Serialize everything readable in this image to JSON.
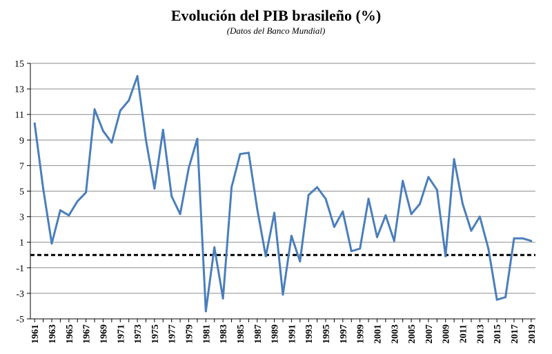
{
  "chart_data": {
    "type": "line",
    "title": "Evolución del PIB brasileño (%)",
    "subtitle": "(Datos del Banco Mundial)",
    "xlabel": "",
    "ylabel": "",
    "ylim": [
      -5,
      15
    ],
    "yticks": [
      15,
      13,
      11,
      9,
      7,
      5,
      3,
      1,
      -1,
      -3,
      -5
    ],
    "xlim": [
      1961,
      2019
    ],
    "xticks": [
      1961,
      1963,
      1965,
      1967,
      1969,
      1971,
      1973,
      1975,
      1977,
      1979,
      1981,
      1983,
      1985,
      1987,
      1989,
      1991,
      1993,
      1995,
      1997,
      1999,
      2001,
      2003,
      2005,
      2007,
      2009,
      2011,
      2013,
      2015,
      2017,
      2019
    ],
    "grid": true,
    "zero_line": "dashed",
    "colors": {
      "line": "#4a7ebb",
      "grid": "#8c8c8c",
      "axis": "#000000"
    },
    "series": [
      {
        "name": "PIB",
        "x": [
          1961,
          1962,
          1963,
          1964,
          1965,
          1966,
          1967,
          1968,
          1969,
          1970,
          1971,
          1972,
          1973,
          1974,
          1975,
          1976,
          1977,
          1978,
          1979,
          1980,
          1981,
          1982,
          1983,
          1984,
          1985,
          1986,
          1987,
          1988,
          1989,
          1990,
          1991,
          1992,
          1993,
          1994,
          1995,
          1996,
          1997,
          1998,
          1999,
          2000,
          2001,
          2002,
          2003,
          2004,
          2005,
          2006,
          2007,
          2008,
          2009,
          2010,
          2011,
          2012,
          2013,
          2014,
          2015,
          2016,
          2017,
          2018,
          2019
        ],
        "values": [
          10.3,
          5.2,
          0.9,
          3.5,
          3.1,
          4.2,
          4.9,
          11.4,
          9.7,
          8.8,
          11.3,
          12.1,
          14.0,
          9.0,
          5.2,
          9.8,
          4.6,
          3.2,
          6.8,
          9.1,
          -4.4,
          0.6,
          -3.4,
          5.3,
          7.9,
          8.0,
          3.6,
          -0.1,
          3.3,
          -3.1,
          1.5,
          -0.5,
          4.7,
          5.3,
          4.4,
          2.2,
          3.4,
          0.3,
          0.5,
          4.4,
          1.4,
          3.1,
          1.1,
          5.8,
          3.2,
          4.0,
          6.1,
          5.1,
          -0.1,
          7.5,
          4.0,
          1.9,
          3.0,
          0.5,
          -3.5,
          -3.3,
          1.3,
          1.3,
          1.1
        ]
      }
    ]
  }
}
